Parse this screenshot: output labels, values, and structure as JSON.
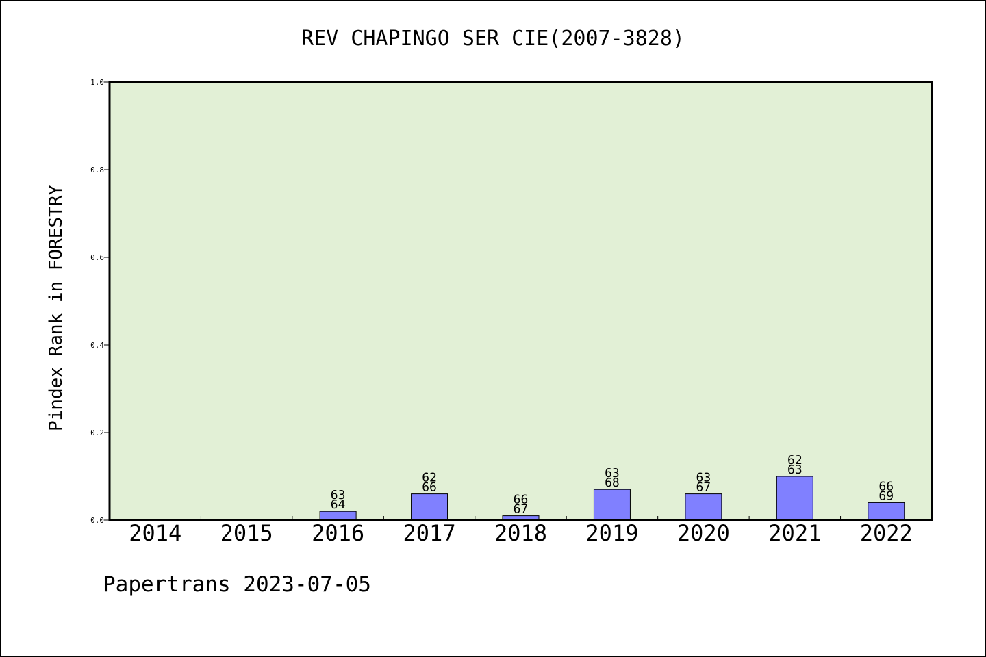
{
  "chart_data": {
    "type": "bar",
    "title": "REV CHAPINGO SER CIE(2007-3828)",
    "ylabel": "Pindex Rank in FORESTRY",
    "xlabel": "",
    "ylim": [
      0,
      1.0
    ],
    "yticks": [
      "0.0",
      "0.2",
      "0.4",
      "0.6",
      "0.8",
      "1.0"
    ],
    "ytick_values": [
      0,
      0.2,
      0.4,
      0.6,
      0.8,
      1.0
    ],
    "grid": false,
    "categories": [
      "2014",
      "2015",
      "2016",
      "2017",
      "2018",
      "2019",
      "2020",
      "2021",
      "2022"
    ],
    "values": [
      0,
      0,
      0.02,
      0.06,
      0.01,
      0.07,
      0.06,
      0.1,
      0.04
    ],
    "labels_top": [
      "",
      "",
      "63",
      "62",
      "66",
      "63",
      "63",
      "62",
      "66"
    ],
    "labels_bottom": [
      "",
      "",
      "64",
      "66",
      "67",
      "68",
      "67",
      "63",
      "69"
    ],
    "colors": {
      "plot_background": "#e2f0d6",
      "bar_fill": "#8080ff",
      "bar_stroke": "#000000"
    }
  },
  "footer": {
    "text": "Papertrans 2023-07-05"
  }
}
